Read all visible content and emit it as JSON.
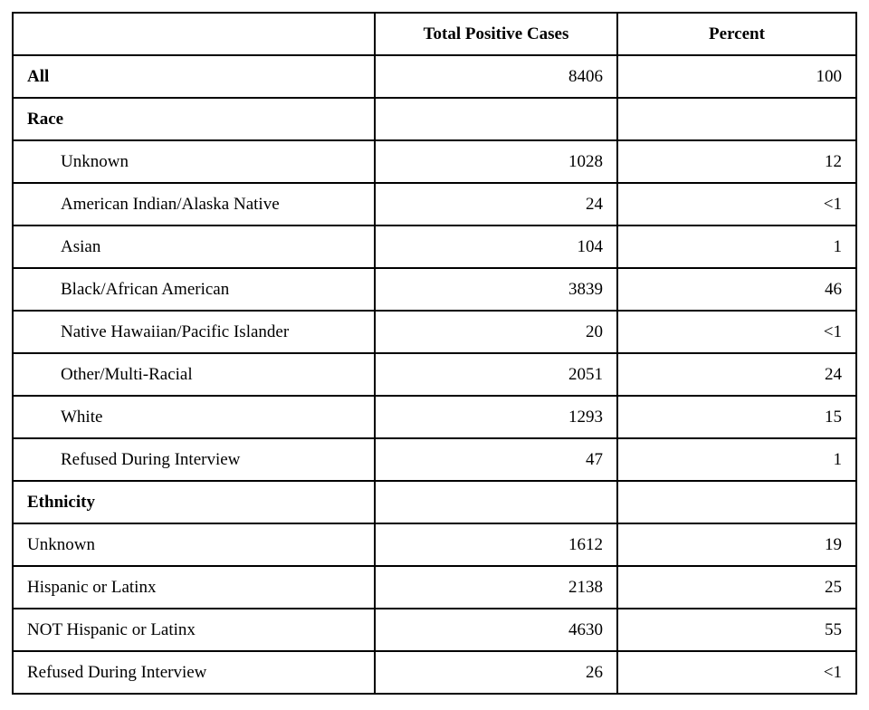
{
  "table": {
    "columns": [
      "",
      "Total Positive Cases",
      "Percent"
    ],
    "rows": [
      {
        "label": "All",
        "bold": true,
        "indent": false,
        "total_positive_cases": "8406",
        "percent": "100"
      },
      {
        "label": "Race",
        "bold": true,
        "indent": false,
        "total_positive_cases": "",
        "percent": ""
      },
      {
        "label": "Unknown",
        "bold": false,
        "indent": true,
        "total_positive_cases": "1028",
        "percent": "12"
      },
      {
        "label": "American Indian/Alaska Native",
        "bold": false,
        "indent": true,
        "total_positive_cases": "24",
        "percent": "<1"
      },
      {
        "label": "Asian",
        "bold": false,
        "indent": true,
        "total_positive_cases": "104",
        "percent": "1"
      },
      {
        "label": "Black/African American",
        "bold": false,
        "indent": true,
        "total_positive_cases": "3839",
        "percent": "46"
      },
      {
        "label": "Native Hawaiian/Pacific Islander",
        "bold": false,
        "indent": true,
        "total_positive_cases": "20",
        "percent": "<1"
      },
      {
        "label": "Other/Multi-Racial",
        "bold": false,
        "indent": true,
        "total_positive_cases": "2051",
        "percent": "24"
      },
      {
        "label": "White",
        "bold": false,
        "indent": true,
        "total_positive_cases": "1293",
        "percent": "15"
      },
      {
        "label": "Refused During Interview",
        "bold": false,
        "indent": true,
        "total_positive_cases": "47",
        "percent": "1"
      },
      {
        "label": "Ethnicity",
        "bold": true,
        "indent": false,
        "total_positive_cases": "",
        "percent": ""
      },
      {
        "label": "Unknown",
        "bold": false,
        "indent": false,
        "total_positive_cases": "1612",
        "percent": "19"
      },
      {
        "label": "Hispanic or Latinx",
        "bold": false,
        "indent": false,
        "total_positive_cases": "2138",
        "percent": "25"
      },
      {
        "label": "NOT Hispanic or Latinx",
        "bold": false,
        "indent": false,
        "total_positive_cases": "4630",
        "percent": "55"
      },
      {
        "label": "Refused During Interview",
        "bold": false,
        "indent": false,
        "total_positive_cases": "26",
        "percent": "<1"
      }
    ]
  }
}
